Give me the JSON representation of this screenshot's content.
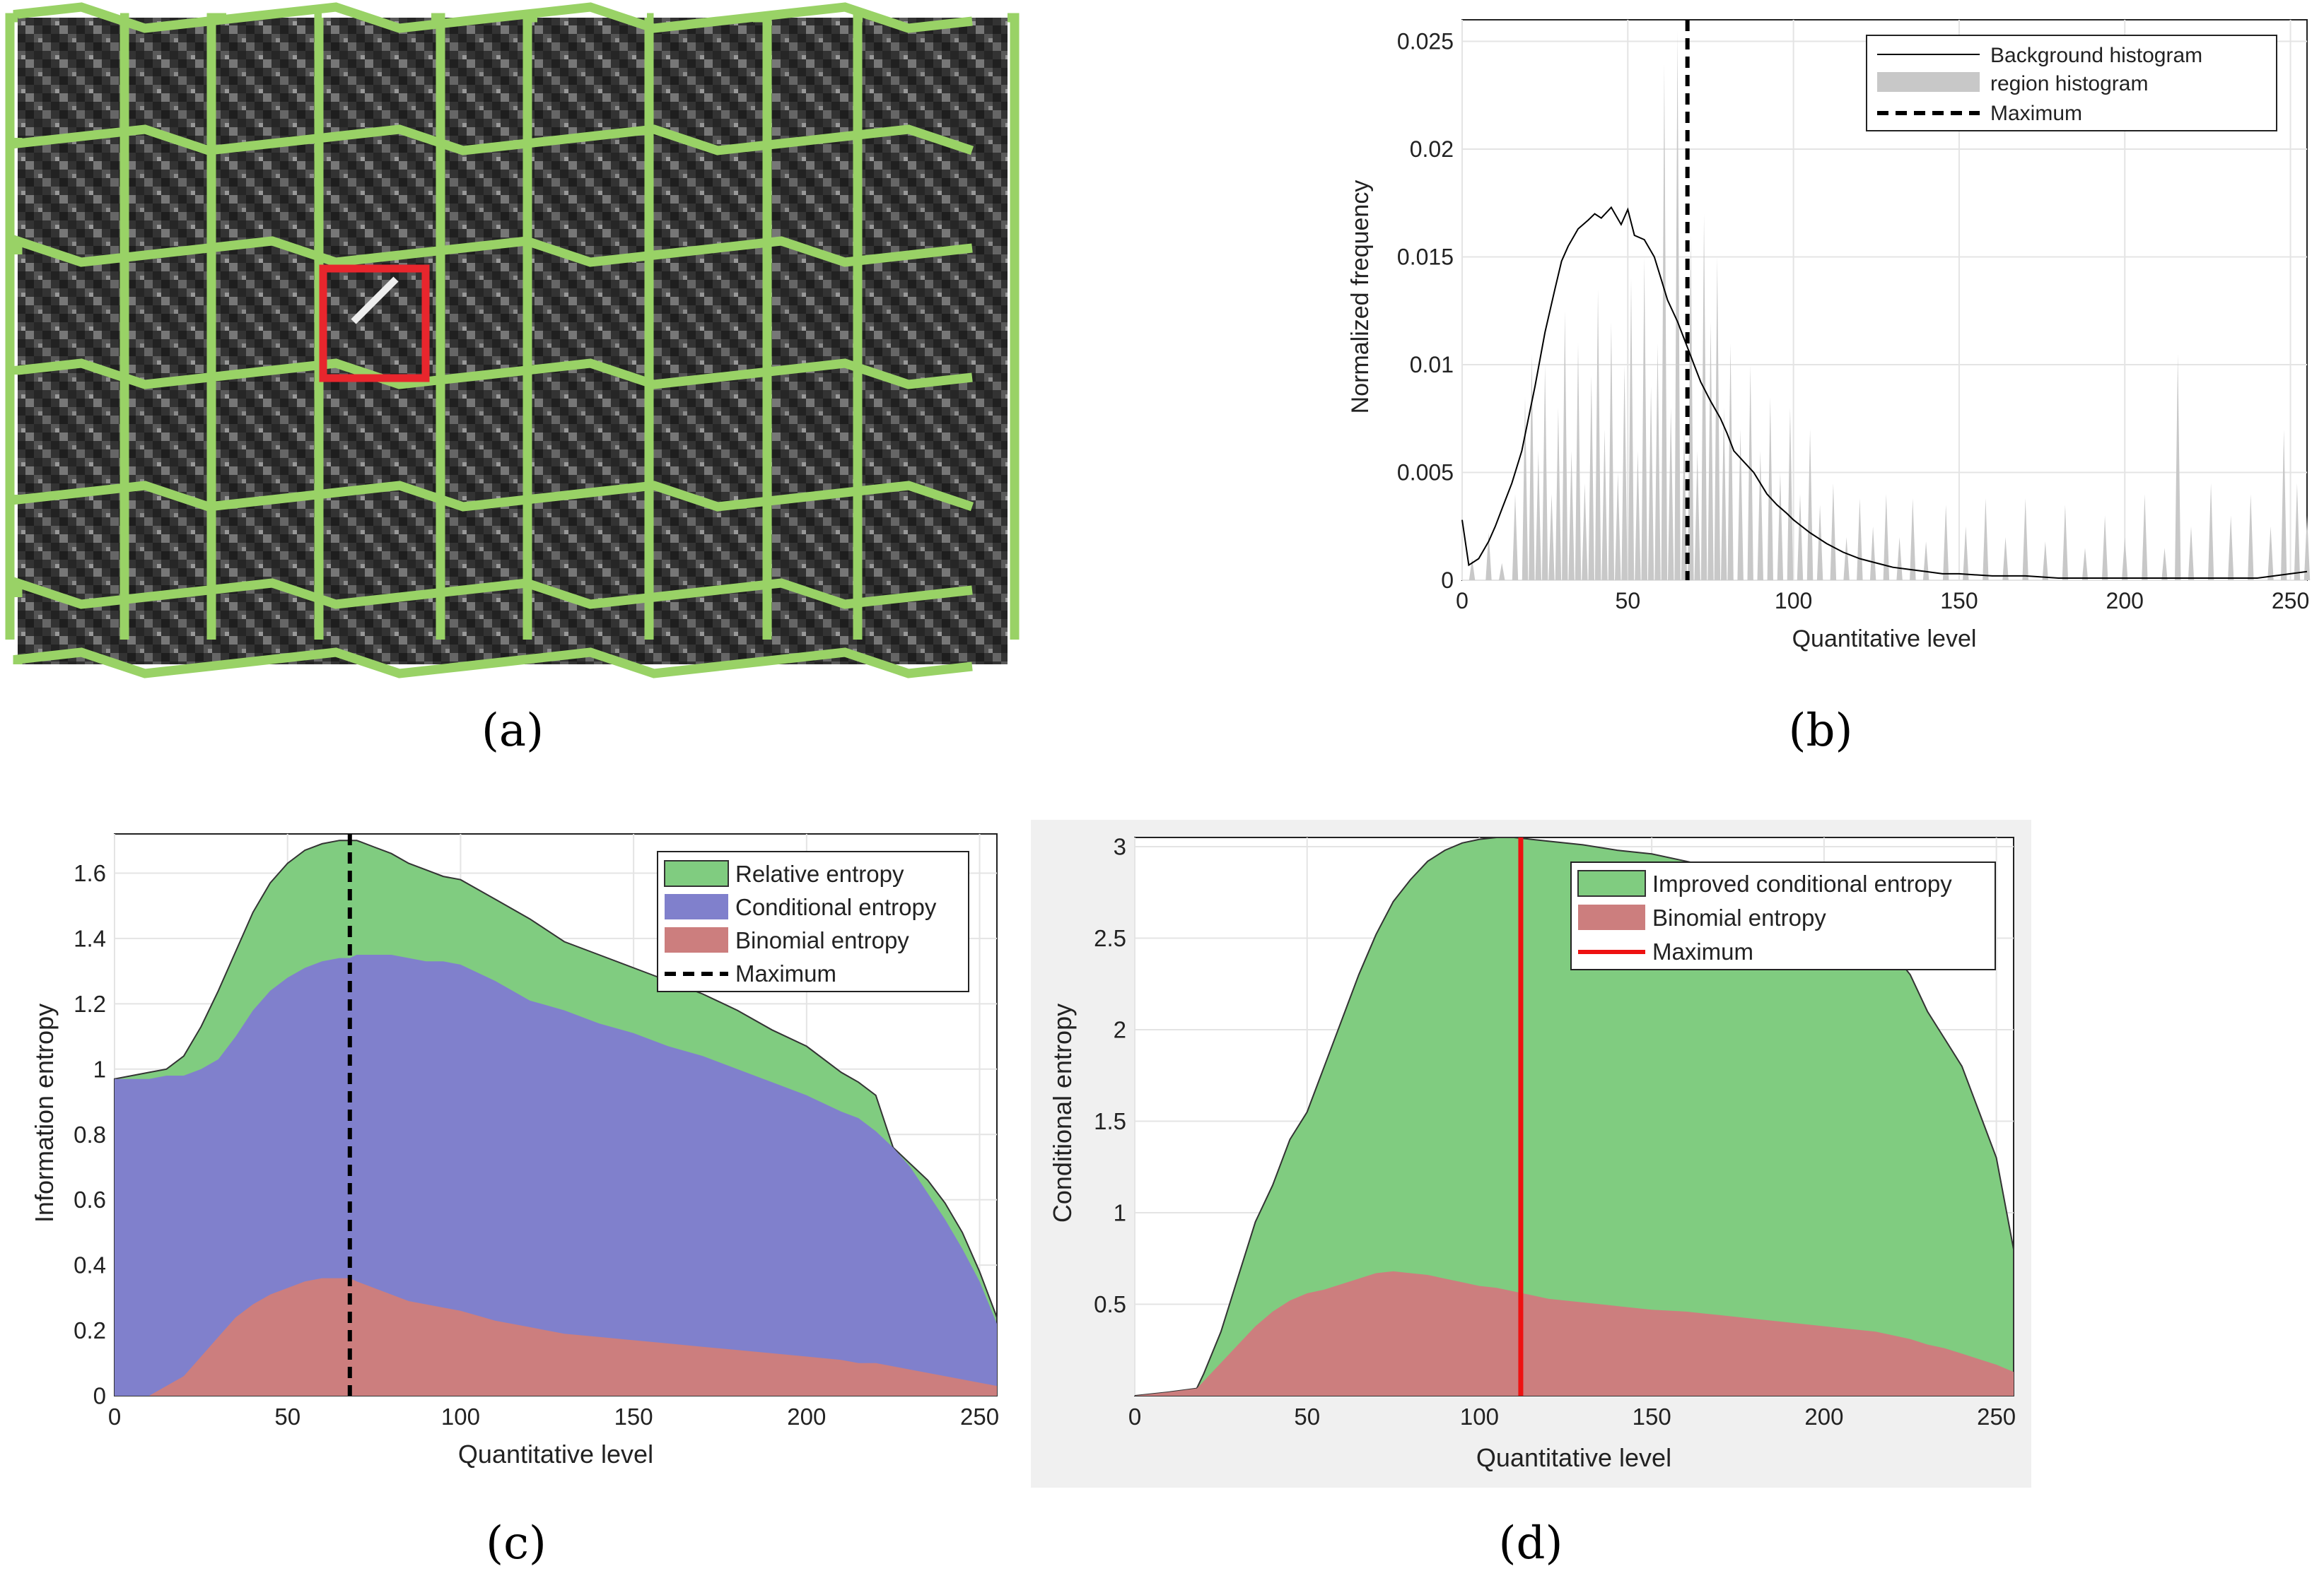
{
  "panels": {
    "a": {
      "caption": "(a)",
      "colors": {
        "boundary": "#99d266",
        "highlight": "#e8262d",
        "bg": "#3a3a3a"
      }
    },
    "b": {
      "caption": "(b)"
    },
    "c": {
      "caption": "(c)"
    },
    "d": {
      "caption": "(d)"
    }
  },
  "chart_data": [
    {
      "id": "b",
      "type": "area",
      "title": "",
      "xlabel": "Quantitative level",
      "ylabel": "Normalized frequency",
      "xlim": [
        0,
        255
      ],
      "ylim": [
        0,
        0.026
      ],
      "xticks": [
        0,
        50,
        100,
        150,
        200,
        250
      ],
      "xtick_labels": [
        "0",
        "50",
        "100",
        "150",
        "200",
        "250"
      ],
      "yticks": [
        0,
        0.005,
        0.01,
        0.015,
        0.02,
        0.025
      ],
      "ytick_labels": [
        "0",
        "0.005",
        "0.01",
        "0.015",
        "0.02",
        "0.025"
      ],
      "grid": true,
      "legend_position": "top-right",
      "legend": [
        "Background histogram",
        "region histogram",
        "Maximum"
      ],
      "maximum_x": 68,
      "series": [
        {
          "name": "Background histogram",
          "style": "line",
          "color": "#000000",
          "x": [
            0,
            2,
            5,
            8,
            10,
            12,
            15,
            18,
            20,
            22,
            25,
            28,
            30,
            32,
            35,
            38,
            40,
            42,
            45,
            48,
            50,
            52,
            55,
            58,
            60,
            62,
            65,
            68,
            70,
            72,
            75,
            78,
            80,
            82,
            85,
            88,
            90,
            92,
            95,
            98,
            100,
            105,
            110,
            115,
            120,
            125,
            130,
            135,
            140,
            145,
            150,
            160,
            170,
            180,
            200,
            220,
            240,
            255
          ],
          "y": [
            0.0028,
            0.0007,
            0.001,
            0.0018,
            0.0025,
            0.0033,
            0.0045,
            0.006,
            0.0075,
            0.009,
            0.0115,
            0.0135,
            0.0148,
            0.0155,
            0.0163,
            0.0167,
            0.017,
            0.0168,
            0.0173,
            0.0165,
            0.0172,
            0.016,
            0.0158,
            0.015,
            0.014,
            0.013,
            0.012,
            0.0108,
            0.01,
            0.0092,
            0.0083,
            0.0075,
            0.0068,
            0.006,
            0.0055,
            0.005,
            0.0045,
            0.004,
            0.0035,
            0.0031,
            0.0028,
            0.0022,
            0.0017,
            0.0013,
            0.001,
            0.0008,
            0.0006,
            0.0005,
            0.0004,
            0.0003,
            0.0003,
            0.0002,
            0.0002,
            0.0001,
            0.0001,
            0.0001,
            0.0001,
            0.0004
          ]
        },
        {
          "name": "region histogram",
          "style": "spike-area",
          "color": "#c8c8c8",
          "x": [
            3,
            8,
            12,
            16,
            19,
            21,
            23,
            25,
            27,
            29,
            31,
            33,
            35,
            37,
            39,
            41,
            43,
            45,
            47,
            49,
            51,
            53,
            55,
            57,
            59,
            61,
            63,
            65,
            67,
            69,
            71,
            73,
            75,
            77,
            79,
            81,
            84,
            87,
            90,
            93,
            96,
            99,
            102,
            105,
            108,
            112,
            116,
            120,
            124,
            128,
            132,
            136,
            140,
            146,
            152,
            158,
            164,
            170,
            176,
            182,
            188,
            194,
            200,
            206,
            212,
            216,
            220,
            226,
            232,
            238,
            244,
            248,
            252,
            255
          ],
          "y": [
            0.001,
            0.0022,
            0.0008,
            0.004,
            0.0085,
            0.0105,
            0.006,
            0.01,
            0.004,
            0.008,
            0.0125,
            0.006,
            0.011,
            0.0045,
            0.0095,
            0.0135,
            0.007,
            0.012,
            0.005,
            0.01,
            0.014,
            0.006,
            0.015,
            0.009,
            0.011,
            0.024,
            0.008,
            0.0255,
            0.007,
            0.016,
            0.006,
            0.017,
            0.012,
            0.015,
            0.008,
            0.011,
            0.007,
            0.01,
            0.006,
            0.0085,
            0.005,
            0.008,
            0.004,
            0.007,
            0.0035,
            0.0045,
            0.002,
            0.0038,
            0.0025,
            0.004,
            0.002,
            0.0038,
            0.0018,
            0.0035,
            0.0025,
            0.0038,
            0.002,
            0.0038,
            0.0018,
            0.0035,
            0.0015,
            0.003,
            0.002,
            0.004,
            0.0015,
            0.0105,
            0.0025,
            0.0045,
            0.003,
            0.004,
            0.0025,
            0.007,
            0.0045,
            0.003
          ]
        }
      ]
    },
    {
      "id": "c",
      "type": "area",
      "title": "",
      "xlabel": "Quantitative level",
      "ylabel": "Information entropy",
      "xlim": [
        0,
        255
      ],
      "ylim": [
        0,
        1.72
      ],
      "xticks": [
        0,
        50,
        100,
        150,
        200,
        250
      ],
      "xtick_labels": [
        "0",
        "50",
        "100",
        "150",
        "200",
        "250"
      ],
      "yticks": [
        0,
        0.2,
        0.4,
        0.6,
        0.8,
        1,
        1.2,
        1.4,
        1.6
      ],
      "ytick_labels": [
        "0",
        "0.2",
        "0.4",
        "0.6",
        "0.8",
        "1",
        "1.2",
        "1.4",
        "1.6"
      ],
      "grid": true,
      "legend_position": "top-right",
      "legend": [
        "Relative entropy",
        "Conditional entropy",
        "Binomial entropy",
        "Maximum"
      ],
      "maximum_x": 68,
      "x": [
        0,
        10,
        15,
        20,
        25,
        30,
        35,
        40,
        45,
        50,
        55,
        60,
        65,
        68,
        70,
        75,
        80,
        85,
        90,
        95,
        100,
        110,
        120,
        130,
        140,
        150,
        160,
        170,
        180,
        190,
        200,
        210,
        215,
        220,
        225,
        230,
        235,
        240,
        245,
        250,
        255
      ],
      "series": [
        {
          "name": "Binomial entropy",
          "color": "#cc7e7e",
          "values": [
            0,
            0.0,
            0.03,
            0.06,
            0.12,
            0.18,
            0.24,
            0.28,
            0.31,
            0.33,
            0.35,
            0.36,
            0.36,
            0.36,
            0.35,
            0.33,
            0.31,
            0.29,
            0.28,
            0.27,
            0.26,
            0.23,
            0.21,
            0.19,
            0.18,
            0.17,
            0.16,
            0.15,
            0.14,
            0.13,
            0.12,
            0.11,
            0.1,
            0.1,
            0.09,
            0.08,
            0.07,
            0.06,
            0.05,
            0.04,
            0.03
          ]
        },
        {
          "name": "Conditional entropy",
          "color": "#8080cc",
          "values": [
            0.97,
            0.97,
            0.98,
            0.98,
            1.0,
            1.03,
            1.1,
            1.18,
            1.24,
            1.28,
            1.31,
            1.33,
            1.34,
            1.34,
            1.35,
            1.35,
            1.35,
            1.34,
            1.33,
            1.33,
            1.32,
            1.27,
            1.21,
            1.18,
            1.14,
            1.11,
            1.07,
            1.04,
            1.0,
            0.96,
            0.92,
            0.87,
            0.85,
            0.81,
            0.76,
            0.7,
            0.62,
            0.54,
            0.45,
            0.35,
            0.22
          ]
        },
        {
          "name": "Relative entropy",
          "color": "#80cc80",
          "values": [
            0.97,
            0.99,
            1.0,
            1.04,
            1.13,
            1.24,
            1.36,
            1.48,
            1.57,
            1.63,
            1.67,
            1.69,
            1.7,
            1.7,
            1.7,
            1.68,
            1.66,
            1.63,
            1.61,
            1.59,
            1.58,
            1.52,
            1.46,
            1.39,
            1.35,
            1.31,
            1.27,
            1.23,
            1.18,
            1.12,
            1.07,
            0.99,
            0.96,
            0.92,
            0.76,
            0.71,
            0.66,
            0.59,
            0.5,
            0.38,
            0.24
          ]
        }
      ]
    },
    {
      "id": "d",
      "type": "area",
      "title": "",
      "xlabel": "Quantitative level",
      "ylabel": "Conditional entropy",
      "xlim": [
        0,
        255
      ],
      "ylim": [
        0,
        3.05
      ],
      "xticks": [
        0,
        50,
        100,
        150,
        200,
        250
      ],
      "xtick_labels": [
        "0",
        "50",
        "100",
        "150",
        "200",
        "250"
      ],
      "yticks": [
        0.5,
        1,
        1.5,
        2,
        2.5,
        3
      ],
      "ytick_labels": [
        "0.5",
        "1",
        "1.5",
        "2",
        "2.5",
        "3"
      ],
      "grid": true,
      "legend_position": "top-right",
      "legend": [
        "Improved conditional entropy",
        "Binomial entropy",
        "Maximum"
      ],
      "maximum_x": 112,
      "x": [
        0,
        10,
        18,
        20,
        25,
        30,
        35,
        40,
        45,
        50,
        55,
        60,
        65,
        70,
        75,
        80,
        85,
        90,
        95,
        100,
        105,
        110,
        115,
        120,
        130,
        140,
        150,
        160,
        170,
        180,
        190,
        200,
        210,
        215,
        220,
        225,
        230,
        235,
        240,
        245,
        250,
        255
      ],
      "series": [
        {
          "name": "Binomial entropy",
          "color": "#cc7e7e",
          "values": [
            0,
            0.02,
            0.04,
            0.08,
            0.18,
            0.28,
            0.38,
            0.46,
            0.52,
            0.56,
            0.58,
            0.61,
            0.64,
            0.67,
            0.68,
            0.67,
            0.66,
            0.64,
            0.62,
            0.6,
            0.59,
            0.57,
            0.55,
            0.53,
            0.51,
            0.49,
            0.47,
            0.46,
            0.44,
            0.42,
            0.4,
            0.38,
            0.36,
            0.35,
            0.33,
            0.31,
            0.28,
            0.26,
            0.23,
            0.2,
            0.17,
            0.13
          ]
        },
        {
          "name": "Improved conditional entropy",
          "color": "#80cc80",
          "values": [
            0,
            0.02,
            0.04,
            0.12,
            0.35,
            0.65,
            0.95,
            1.15,
            1.4,
            1.55,
            1.8,
            2.05,
            2.3,
            2.52,
            2.7,
            2.82,
            2.92,
            2.98,
            3.02,
            3.04,
            3.05,
            3.05,
            3.04,
            3.03,
            3.01,
            2.98,
            2.96,
            2.92,
            2.88,
            2.82,
            2.76,
            2.68,
            2.55,
            2.5,
            2.42,
            2.3,
            2.1,
            1.95,
            1.8,
            1.55,
            1.3,
            0.8
          ]
        }
      ]
    }
  ]
}
